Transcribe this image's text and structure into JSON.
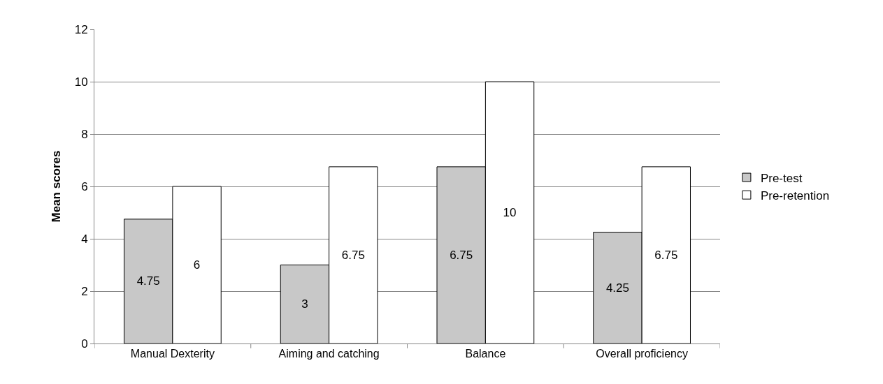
{
  "chart_data": {
    "type": "bar",
    "ylabel": "Mean scores",
    "categories": [
      "Manual Dexterity",
      "Aiming and catching",
      "Balance",
      "Overall proficiency"
    ],
    "series": [
      {
        "name": "Pre-test",
        "color": "#c8c8c8",
        "values": [
          4.75,
          3,
          6.75,
          4.25
        ]
      },
      {
        "name": "Pre-retention",
        "color": "#ffffff",
        "values": [
          6,
          6.75,
          10,
          6.75
        ]
      }
    ],
    "ylim": [
      0,
      12
    ],
    "yticks": [
      0,
      2,
      4,
      6,
      8,
      10,
      12
    ],
    "grid": "y",
    "legend": "right",
    "data_labels": true
  }
}
